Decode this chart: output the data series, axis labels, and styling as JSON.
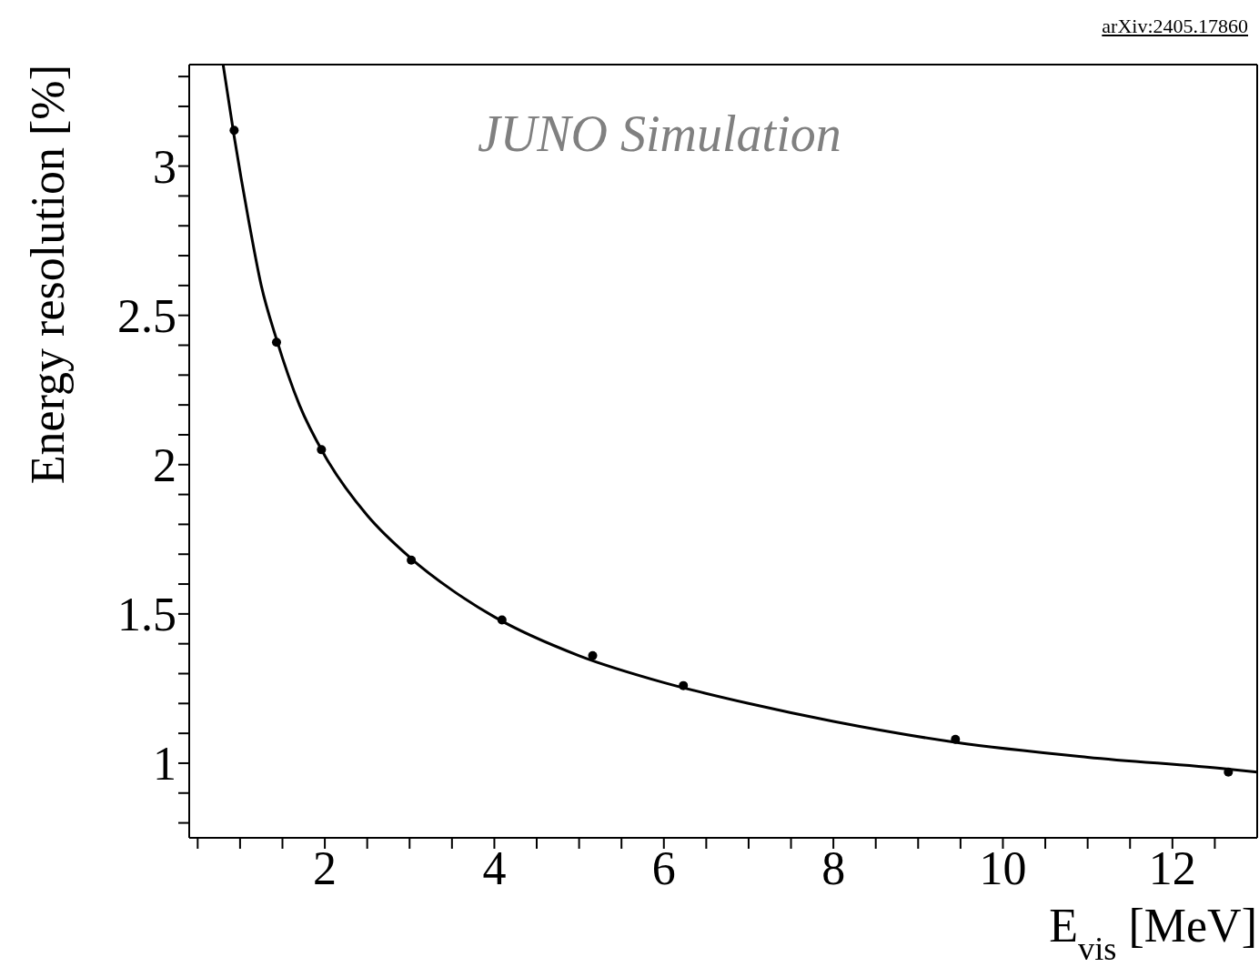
{
  "chart_data": {
    "type": "line",
    "xlabel": "E$_{vis}$ [MeV]",
    "ylabel": "Energy resolution [%]",
    "annotations": [
      "arXiv:2405.17860",
      "JUNO Simulation"
    ],
    "xlim": [
      0.4,
      13
    ],
    "ylim": [
      0.75,
      3.34
    ],
    "xticks": [
      {
        "value": 0.5,
        "label": null
      },
      {
        "value": 1,
        "label": null
      },
      {
        "value": 1.5,
        "label": null
      },
      2,
      {
        "value": 2.5,
        "label": null
      },
      {
        "value": 3,
        "label": null
      },
      {
        "value": 3.5,
        "label": null
      },
      4,
      {
        "value": 4.5,
        "label": null
      },
      {
        "value": 5,
        "label": null
      },
      {
        "value": 5.5,
        "label": null
      },
      6,
      {
        "value": 6.5,
        "label": null
      },
      {
        "value": 7,
        "label": null
      },
      {
        "value": 7.5,
        "label": null
      },
      8,
      {
        "value": 8.5,
        "label": null
      },
      {
        "value": 9,
        "label": null
      },
      {
        "value": 9.5,
        "label": null
      },
      10,
      {
        "value": 10.5,
        "label": null
      },
      {
        "value": 11,
        "label": null
      },
      {
        "value": 11.5,
        "label": null
      },
      12,
      {
        "value": 12.5,
        "label": null
      }
    ],
    "yticks": [
      {
        "value": 0.8,
        "label": null
      },
      {
        "value": 0.9,
        "label": null
      },
      1,
      {
        "value": 1.1,
        "label": null
      },
      {
        "value": 1.2,
        "label": null
      },
      {
        "value": 1.3,
        "label": null
      },
      {
        "value": 1.4,
        "label": null
      },
      1.5,
      {
        "value": 1.6,
        "label": null
      },
      {
        "value": 1.7,
        "label": null
      },
      {
        "value": 1.8,
        "label": null
      },
      {
        "value": 1.9,
        "label": null
      },
      2,
      {
        "value": 2.1,
        "label": null
      },
      {
        "value": 2.2,
        "label": null
      },
      {
        "value": 2.3,
        "label": null
      },
      {
        "value": 2.4,
        "label": null
      },
      2.5,
      {
        "value": 2.6,
        "label": null
      },
      {
        "value": 2.7,
        "label": null
      },
      {
        "value": 2.8,
        "label": null
      },
      {
        "value": 2.9,
        "label": null
      },
      3,
      {
        "value": 3.1,
        "label": null
      },
      {
        "value": 3.2,
        "label": null
      },
      {
        "value": 3.3,
        "label": null
      }
    ],
    "grid": false,
    "legend": false,
    "series": [
      {
        "type": "scatter",
        "color": "#000000",
        "marker": "circle",
        "x": [
          0.93,
          1.43,
          1.96,
          3.02,
          4.09,
          5.16,
          6.23,
          9.44,
          12.66
        ],
        "values": [
          3.12,
          2.41,
          2.05,
          1.68,
          1.48,
          1.36,
          1.26,
          1.08,
          0.97
        ]
      },
      {
        "color": "#000000",
        "marker": "none",
        "line_style": "solid",
        "x": [
          0.8,
          0.93,
          1.1,
          1.25,
          1.43,
          1.7,
          2,
          2.5,
          3,
          3.5,
          4,
          5,
          6,
          7,
          8,
          9.44,
          11,
          12.66,
          13
        ],
        "values": [
          3.34,
          3.1,
          2.82,
          2.6,
          2.42,
          2.2,
          2.03,
          1.83,
          1.69,
          1.58,
          1.49,
          1.36,
          1.27,
          1.2,
          1.14,
          1.07,
          1.02,
          0.98,
          0.97
        ]
      }
    ]
  }
}
